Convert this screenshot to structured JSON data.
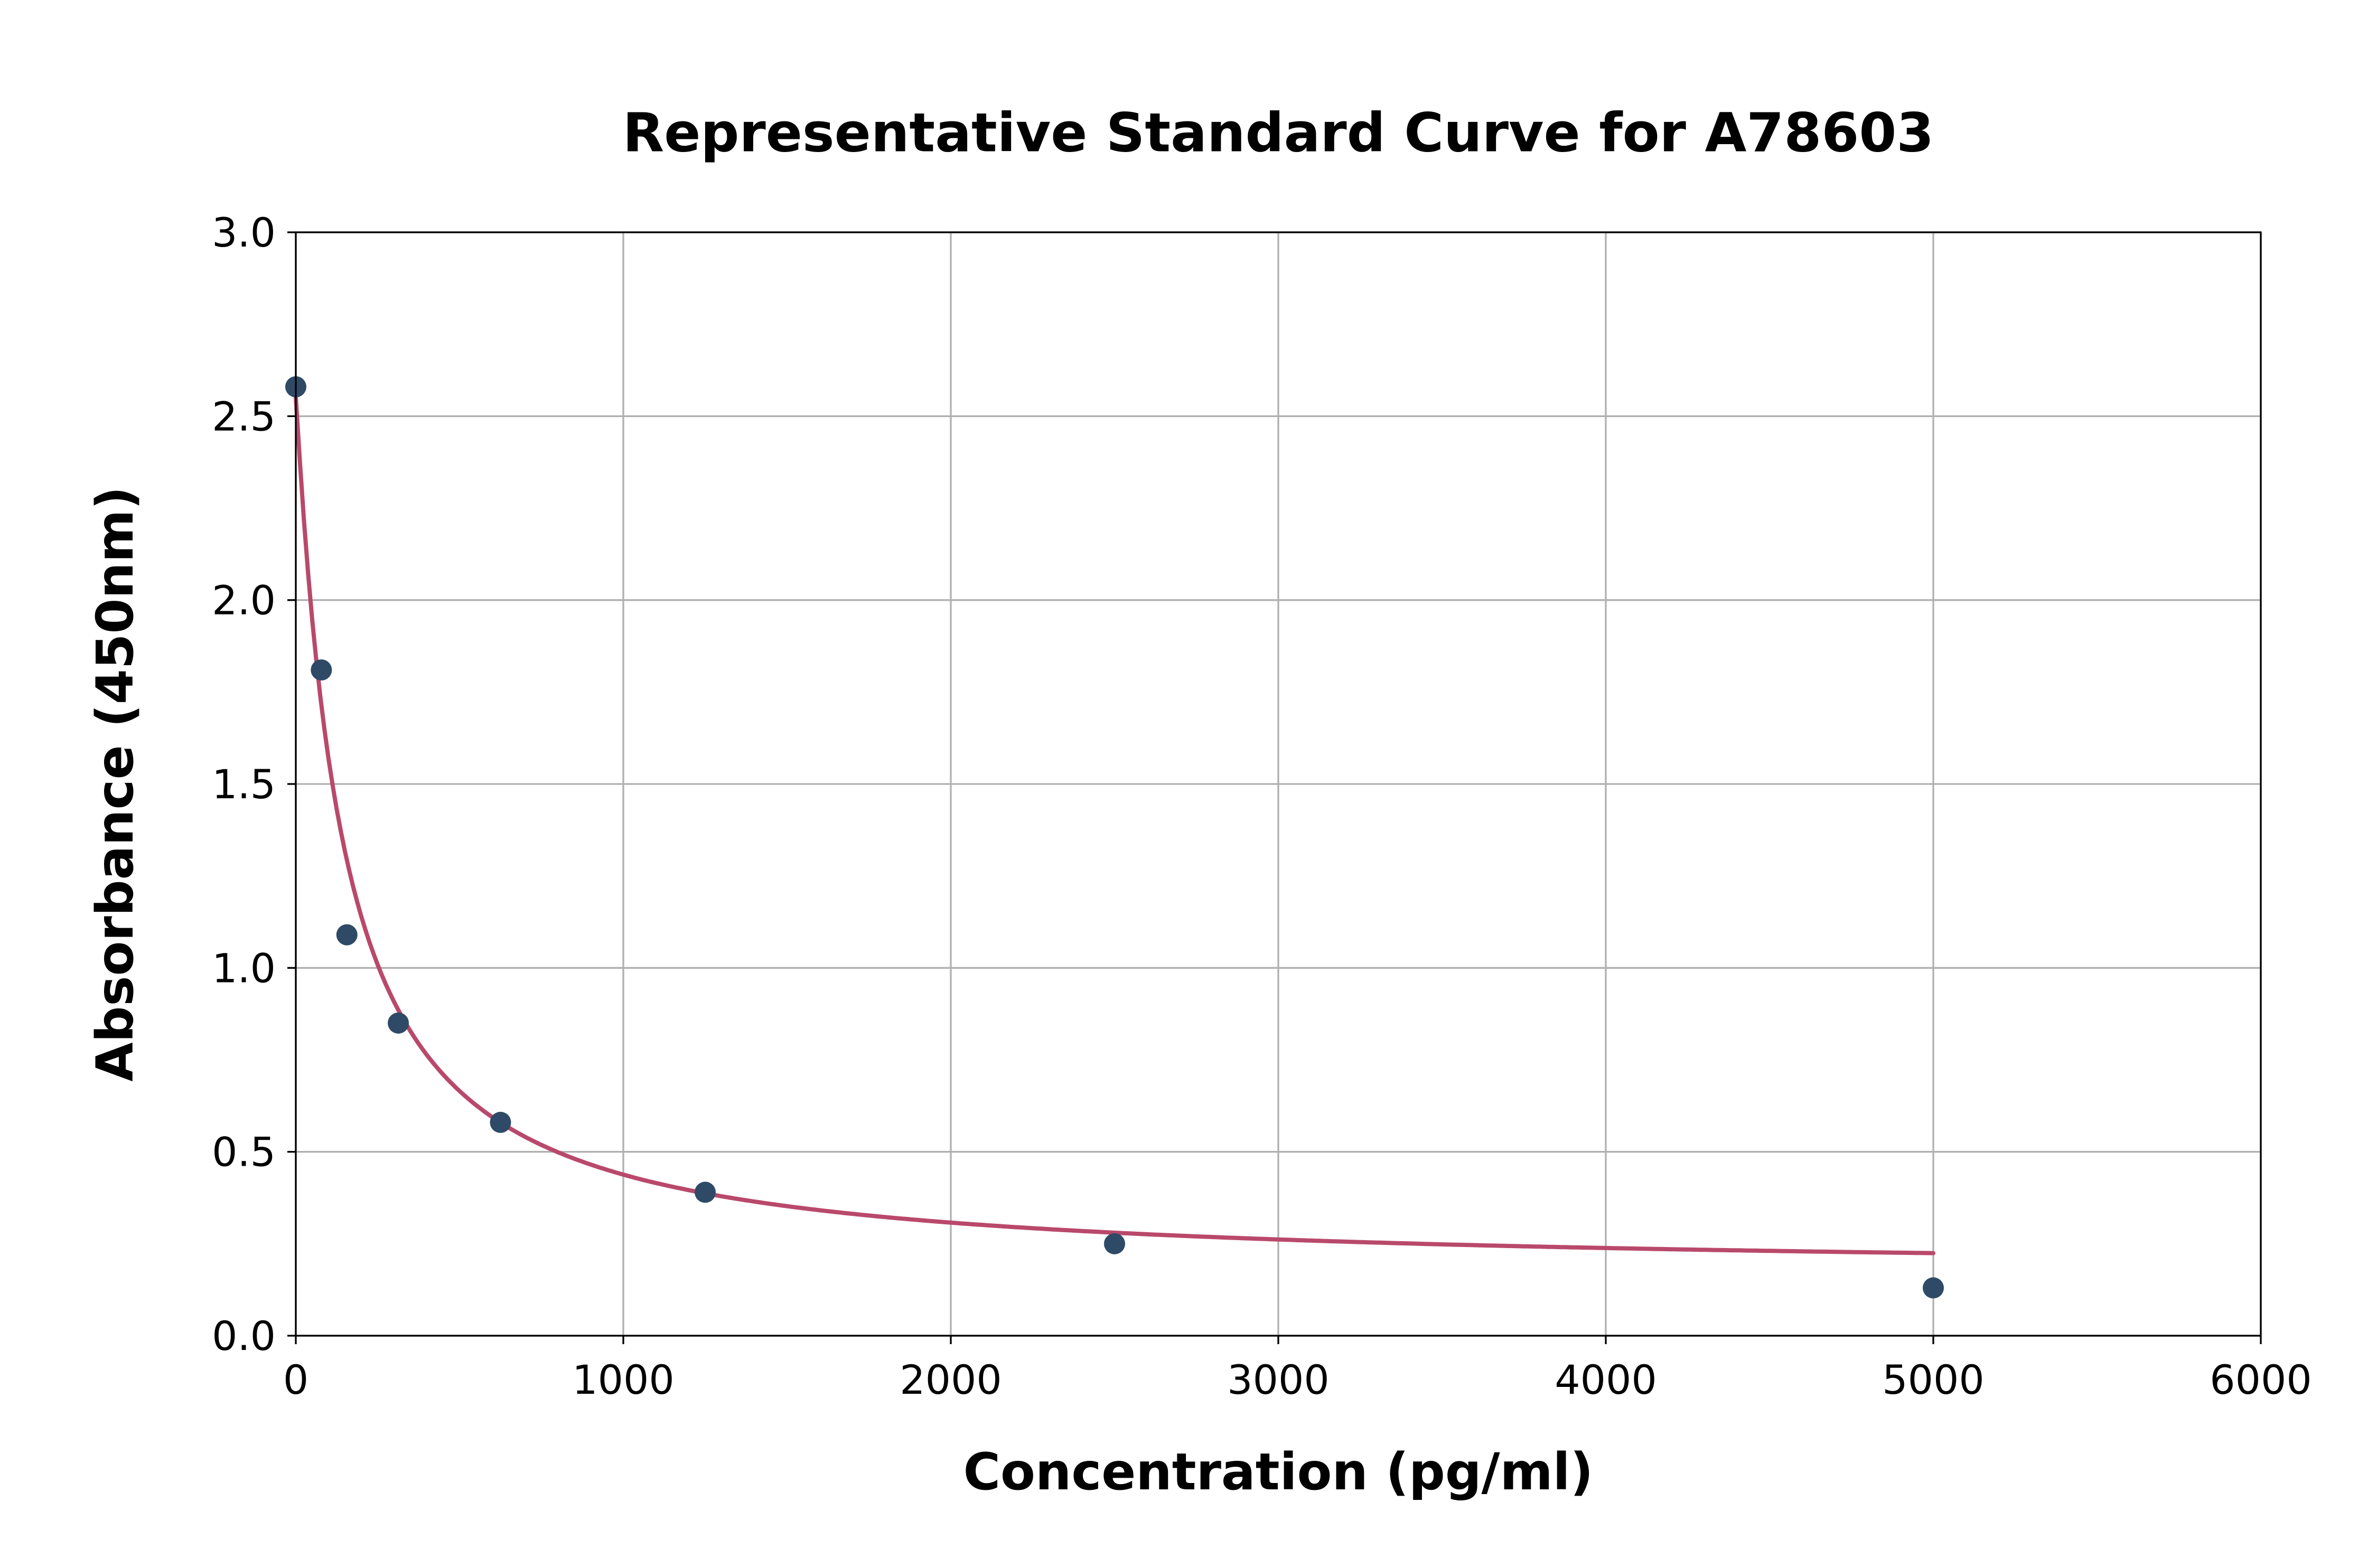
{
  "chart_data": {
    "type": "scatter",
    "title": "Representative Standard Curve for A78603",
    "xlabel": "Concentration (pg/ml)",
    "ylabel": "Absorbance (450nm)",
    "xlim": [
      0,
      6000
    ],
    "ylim": [
      0.0,
      3.0
    ],
    "x_ticks": [
      0,
      1000,
      2000,
      3000,
      4000,
      5000,
      6000
    ],
    "y_ticks": [
      0.0,
      0.5,
      1.0,
      1.5,
      2.0,
      2.5,
      3.0
    ],
    "grid": true,
    "legend": "none",
    "points": {
      "x": [
        0,
        78,
        156,
        313,
        625,
        1250,
        2500,
        5000
      ],
      "y": [
        2.58,
        1.81,
        1.09,
        0.85,
        0.58,
        0.39,
        0.25,
        0.13
      ]
    },
    "fit_curve": {
      "model": "4PL",
      "params": {
        "a": 2.55,
        "b": 1.05,
        "c": 140,
        "d": 0.17
      },
      "x_range": [
        0,
        5000
      ]
    },
    "colors": {
      "points": "#2e4a66",
      "curve": "#b9496b",
      "grid": "#b0b0b0",
      "axes": "#000000",
      "background": "#ffffff"
    }
  }
}
